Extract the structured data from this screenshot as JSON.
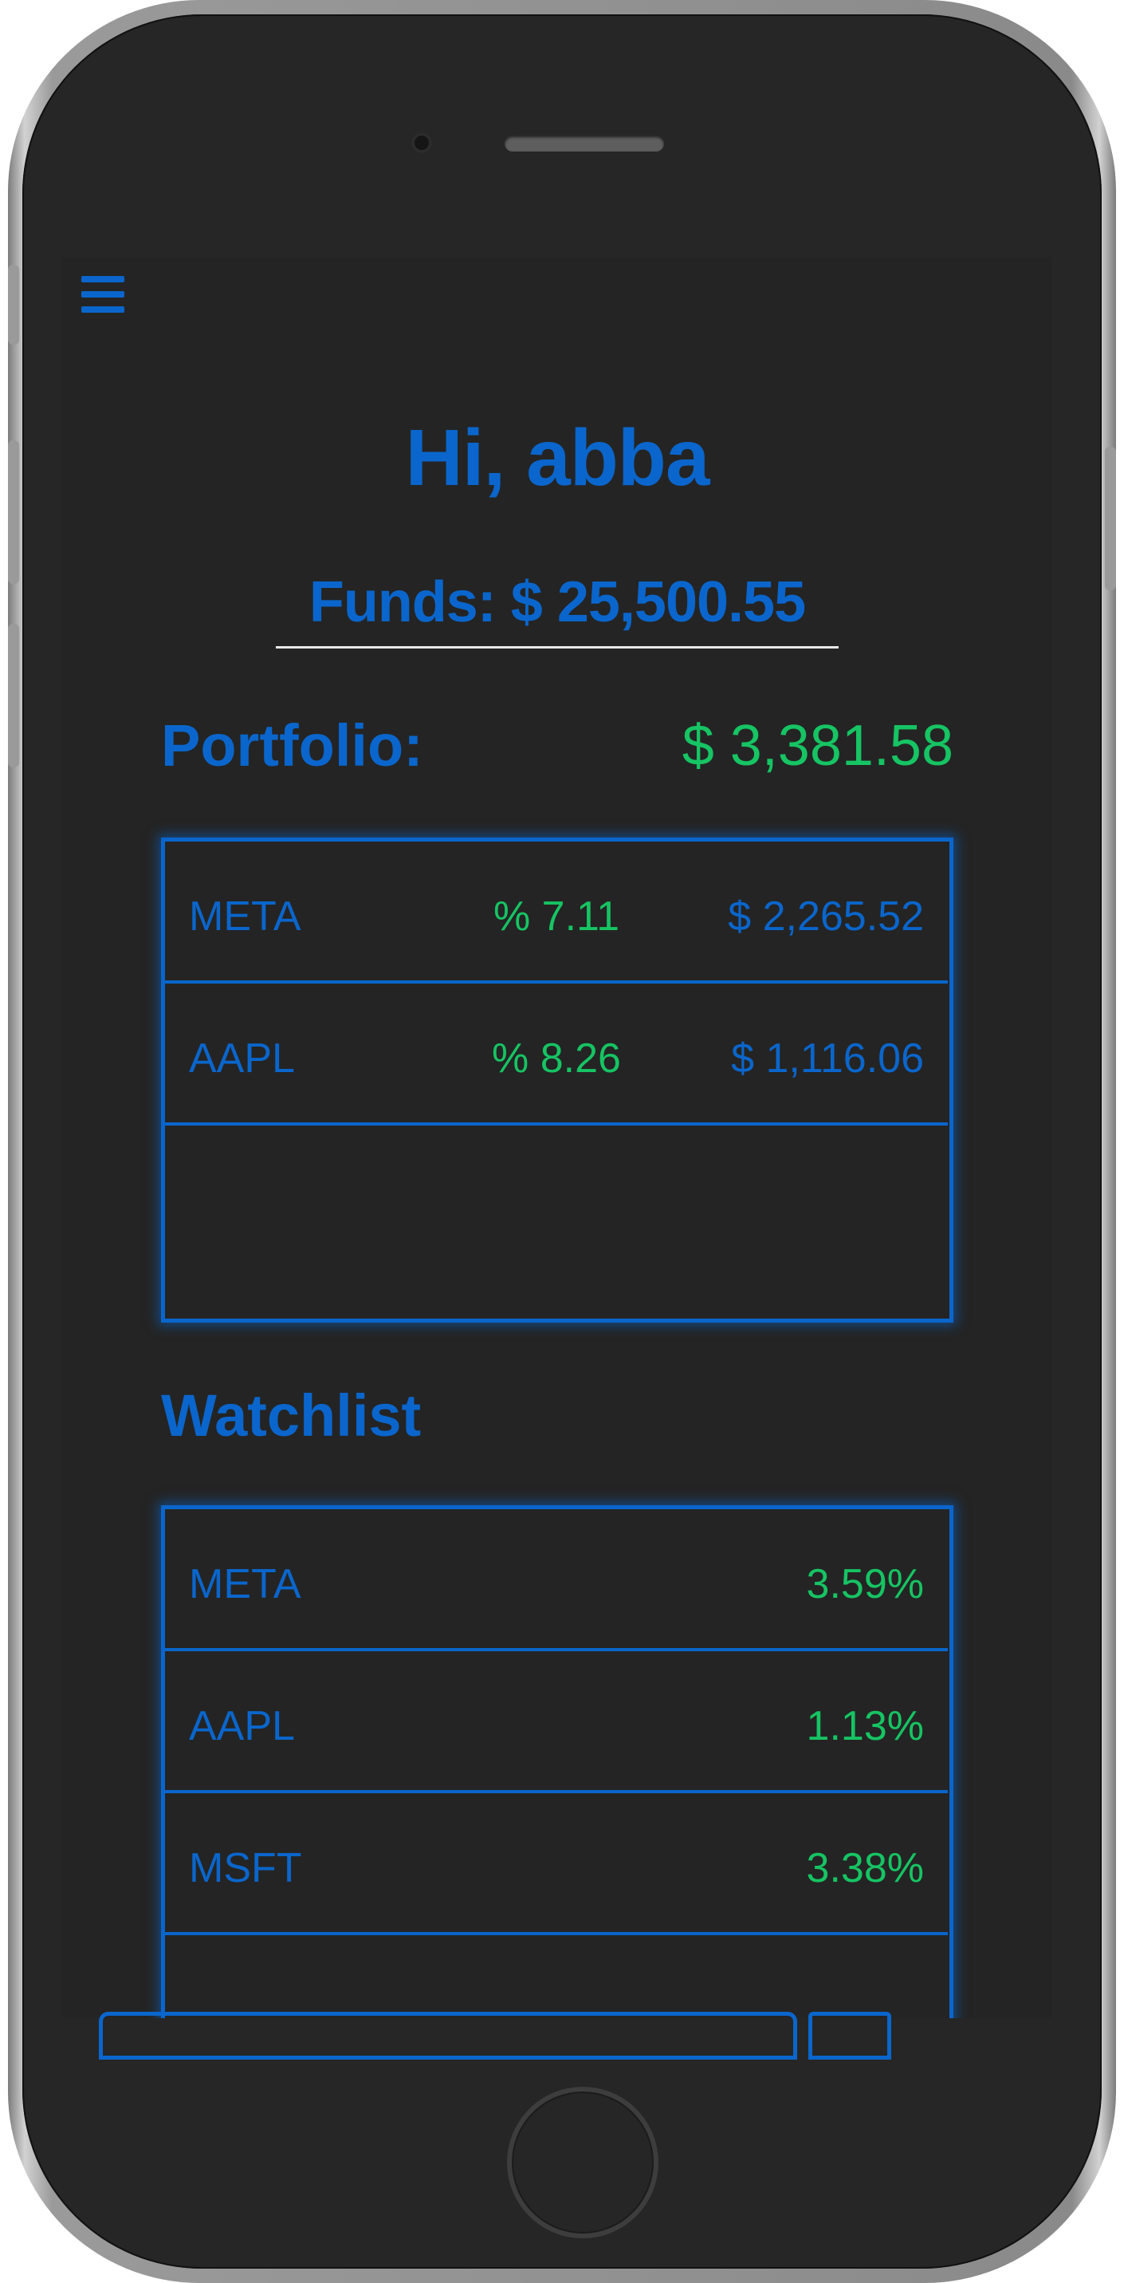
{
  "greeting": "Hi, abba",
  "funds": "Funds: $ 25,500.55",
  "portfolio": {
    "label": "Portfolio:",
    "total": "$ 3,381.58",
    "rows": [
      {
        "symbol": "META",
        "pct": "% 7.11",
        "value": "$ 2,265.52"
      },
      {
        "symbol": "AAPL",
        "pct": "% 8.26",
        "value": "$ 1,116.06"
      }
    ]
  },
  "watchlist": {
    "label": "Watchlist",
    "rows": [
      {
        "symbol": "META",
        "change": "3.59%"
      },
      {
        "symbol": "AAPL",
        "change": "1.13%"
      },
      {
        "symbol": "MSFT",
        "change": "3.38%"
      }
    ]
  },
  "colors": {
    "accent_blue": "#0a66cc",
    "positive_green": "#16c463",
    "background": "#242424"
  }
}
